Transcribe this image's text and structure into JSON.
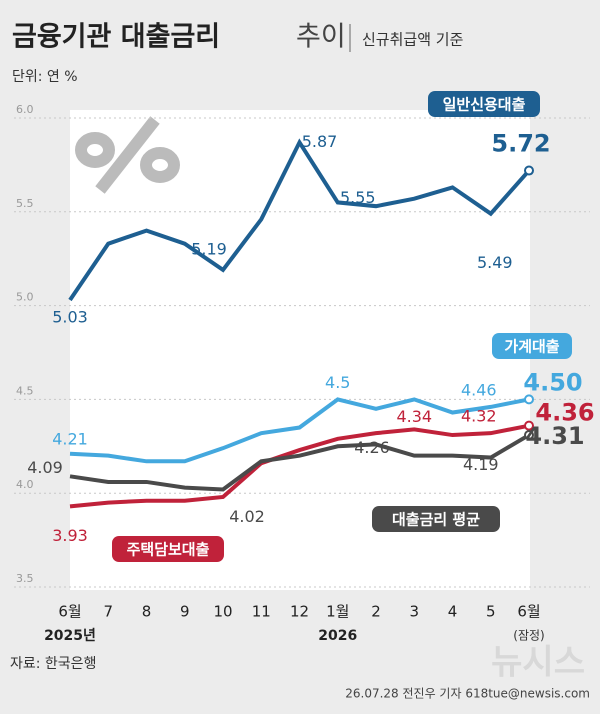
{
  "chart_data": {
    "type": "line",
    "title": "금융기관 대출금리",
    "title_suffix": "추이",
    "subtitle": "신규취급액 기준",
    "unit": "단위: 연 %",
    "source": "자료: 한국은행",
    "credit": "26.07.28 전진우 기자 618tue@newsis.com",
    "watermark": "뉴시스",
    "categories": [
      "6월",
      "7",
      "8",
      "9",
      "10",
      "11",
      "12",
      "1월",
      "2",
      "3",
      "4",
      "5",
      "6월"
    ],
    "year_labels": [
      "2025년",
      null,
      null,
      null,
      null,
      null,
      null,
      "2026",
      null,
      null,
      null,
      null,
      null
    ],
    "category_notes": [
      null,
      null,
      null,
      null,
      null,
      null,
      null,
      null,
      null,
      null,
      null,
      null,
      "(잠정)"
    ],
    "ylim": [
      3.5,
      6.0
    ],
    "yticks": [
      3.5,
      {
        "value": 4,
        "label": "4.0"
      },
      4.5,
      {
        "value": 5,
        "label": "5.0"
      },
      5.5,
      {
        "value": 6,
        "label": "6.0"
      }
    ],
    "grid": true,
    "series": [
      {
        "name": "일반신용대출",
        "color": "#1e5f91",
        "values": [
          5.03,
          5.33,
          5.4,
          5.33,
          5.19,
          5.46,
          5.87,
          5.55,
          5.53,
          5.57,
          5.63,
          5.49,
          5.72
        ],
        "value_labels": [
          "5.03",
          null,
          null,
          null,
          "5.19",
          null,
          "5.87",
          "5.55",
          null,
          null,
          null,
          "5.49",
          "5.72"
        ]
      },
      {
        "name": "가계대출",
        "color": "#44a8de",
        "values": [
          4.21,
          4.2,
          4.17,
          4.17,
          4.24,
          4.32,
          4.35,
          4.5,
          4.45,
          4.5,
          4.43,
          4.46,
          4.5
        ],
        "value_labels": [
          "4.21",
          null,
          null,
          null,
          null,
          null,
          null,
          "4.5",
          null,
          null,
          null,
          "4.46",
          "4.50"
        ]
      },
      {
        "name": "주택담보대출",
        "color": "#c0223a",
        "values": [
          3.93,
          3.95,
          3.96,
          3.96,
          3.98,
          4.16,
          4.23,
          4.29,
          4.32,
          4.34,
          4.31,
          4.32,
          4.36
        ],
        "value_labels": [
          "3.93",
          null,
          null,
          null,
          null,
          null,
          null,
          null,
          null,
          "4.34",
          null,
          "4.32",
          "4.36"
        ]
      },
      {
        "name": "대출금리 평균",
        "color": "#4a4a4a",
        "values": [
          4.09,
          4.06,
          4.06,
          4.03,
          4.02,
          4.17,
          4.2,
          4.25,
          4.26,
          4.2,
          4.2,
          4.19,
          4.31
        ],
        "value_labels": [
          "4.09",
          null,
          null,
          null,
          "4.02",
          null,
          null,
          null,
          "4.26",
          null,
          null,
          "4.19",
          "4.31"
        ]
      }
    ]
  }
}
